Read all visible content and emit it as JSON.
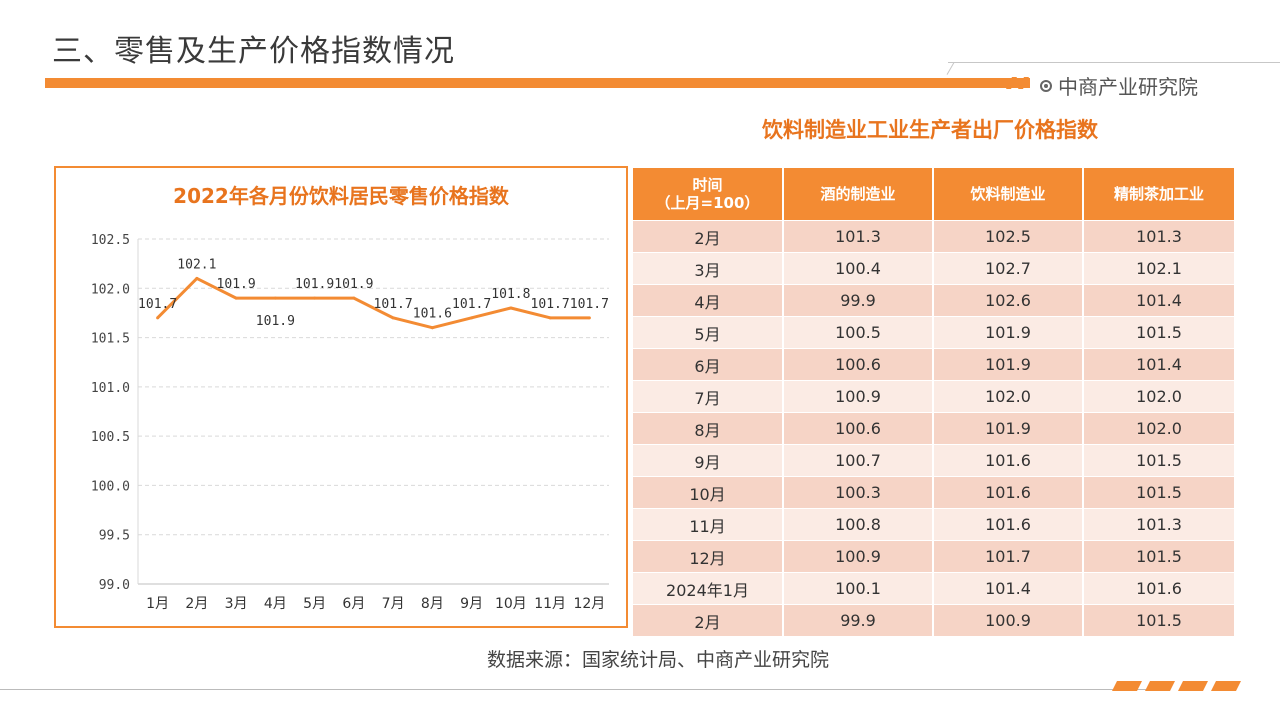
{
  "header": {
    "title": "三、零售及生产价格指数情况",
    "brand": "中商产业研究院"
  },
  "left_chart": {
    "title": "2022年各月份饮料居民零售价格指数"
  },
  "right_table": {
    "title": "饮料制造业工业生产者出厂价格指数",
    "headers": [
      "时间\n（上月=100）",
      "酒的制造业",
      "饮料制造业",
      "精制茶加工业"
    ],
    "rows": [
      [
        "2月",
        "101.3",
        "102.5",
        "101.3"
      ],
      [
        "3月",
        "100.4",
        "102.7",
        "102.1"
      ],
      [
        "4月",
        "99.9",
        "102.6",
        "101.4"
      ],
      [
        "5月",
        "100.5",
        "101.9",
        "101.5"
      ],
      [
        "6月",
        "100.6",
        "101.9",
        "101.4"
      ],
      [
        "7月",
        "100.9",
        "102.0",
        "102.0"
      ],
      [
        "8月",
        "100.6",
        "101.9",
        "102.0"
      ],
      [
        "9月",
        "100.7",
        "101.6",
        "101.5"
      ],
      [
        "10月",
        "100.3",
        "101.6",
        "101.5"
      ],
      [
        "11月",
        "100.8",
        "101.6",
        "101.3"
      ],
      [
        "12月",
        "100.9",
        "101.7",
        "101.5"
      ],
      [
        "2024年1月",
        "100.1",
        "101.4",
        "101.6"
      ],
      [
        "2月",
        "99.9",
        "100.9",
        "101.5"
      ]
    ]
  },
  "source_note": "数据来源：国家统计局、中商产业研究院",
  "colors": {
    "accent": "#f38b33",
    "title_orange": "#e8741e",
    "row_dark": "#f6d4c6",
    "row_light": "#fbebe4",
    "line": "#f38b33"
  },
  "chart_data": {
    "type": "line",
    "title": "2022年各月份饮料居民零售价格指数",
    "categories": [
      "1月",
      "2月",
      "3月",
      "4月",
      "5月",
      "6月",
      "7月",
      "8月",
      "9月",
      "10月",
      "11月",
      "12月"
    ],
    "values": [
      101.7,
      102.1,
      101.9,
      101.9,
      101.9,
      101.9,
      101.7,
      101.6,
      101.7,
      101.8,
      101.7,
      101.7
    ],
    "data_labels": [
      "101.7",
      "102.1",
      "101.9",
      "101.9",
      "101.9",
      "101.9",
      "101.7",
      "101.6",
      "101.7",
      "101.8",
      "101.7",
      "101.7"
    ],
    "label_placement": [
      "above",
      "above",
      "above",
      "below",
      "above",
      "above",
      "above",
      "above",
      "above",
      "above",
      "above",
      "above"
    ],
    "yticks": [
      "102.5",
      "102.0",
      "101.5",
      "101.0",
      "100.5",
      "100.0",
      "99.5",
      "99.0"
    ],
    "ylim": [
      99.0,
      102.5
    ],
    "grid": true,
    "xlabel": "",
    "ylabel": ""
  }
}
